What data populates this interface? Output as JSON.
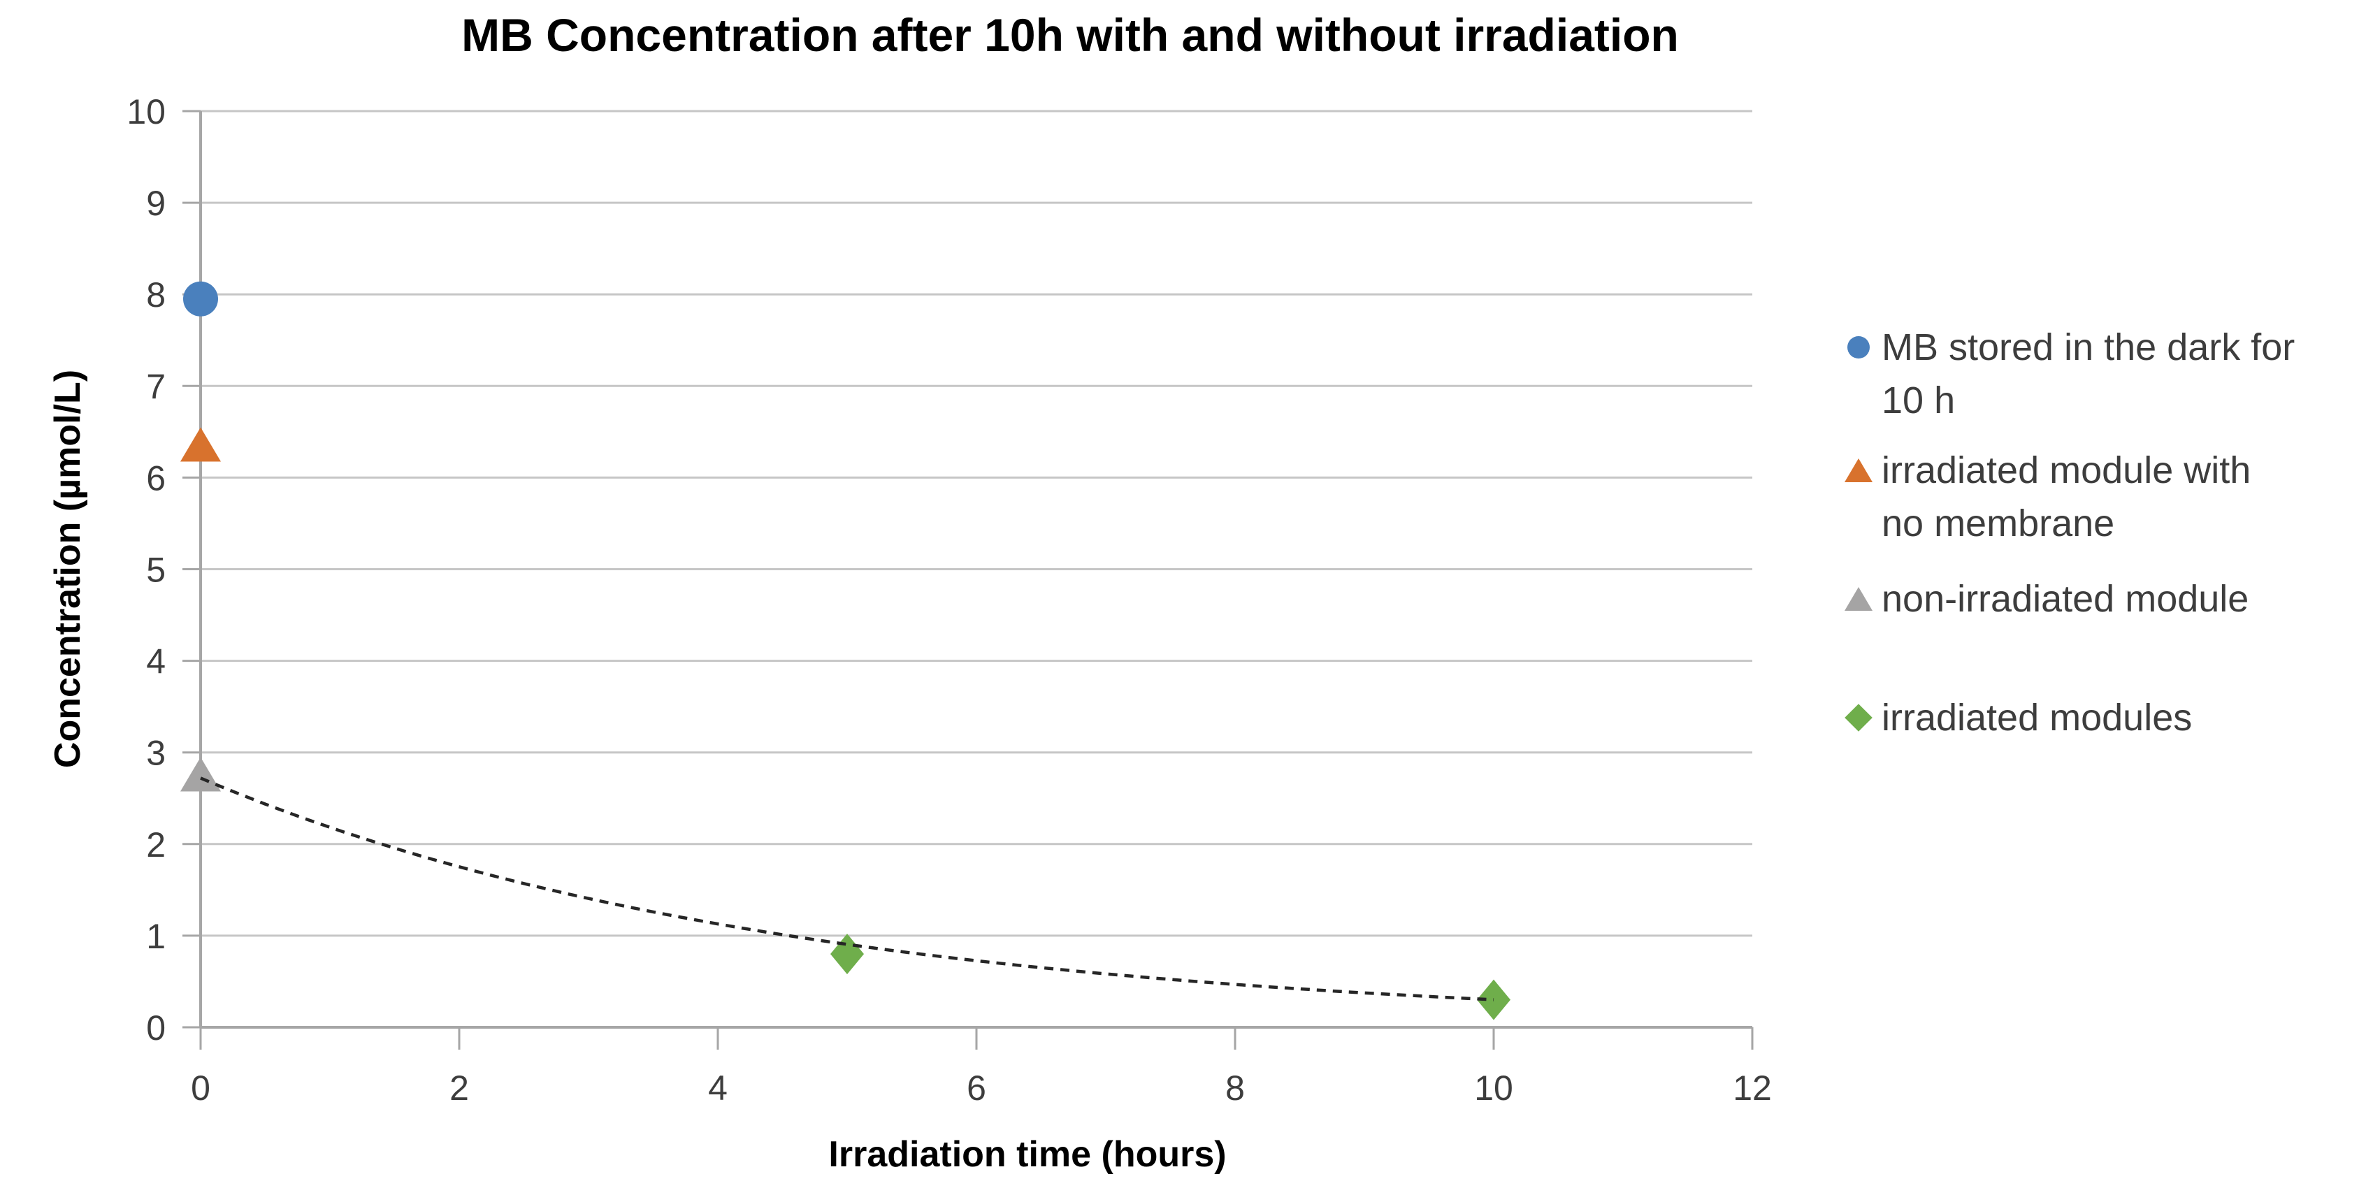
{
  "chart_data": {
    "type": "scatter",
    "title": "MB Concentration after 10h with and without irradiation",
    "xlabel": "Irradiation time (hours)",
    "ylabel": "Concentration (µmol/L)",
    "xlim": [
      0,
      12
    ],
    "ylim": [
      0,
      10
    ],
    "x_ticks": [
      0,
      2,
      4,
      6,
      8,
      10,
      12
    ],
    "y_ticks": [
      0,
      1,
      2,
      3,
      4,
      5,
      6,
      7,
      8,
      9,
      10
    ],
    "grid": "horizontal-only",
    "legend_position": "right",
    "series": [
      {
        "name": "MB stored in the dark for 10 h",
        "legend_lines": [
          "MB stored in the dark for",
          "10 h"
        ],
        "marker": "circle",
        "color": "#4a80bd",
        "points": [
          [
            0,
            7.95
          ]
        ]
      },
      {
        "name": "irradiated module with no membrane",
        "legend_lines": [
          "irradiated module with",
          "no membrane"
        ],
        "marker": "triangle",
        "color": "#d8722d",
        "points": [
          [
            0,
            6.35
          ]
        ]
      },
      {
        "name": "non-irradiated module",
        "legend_lines": [
          "non-irradiated module"
        ],
        "marker": "triangle",
        "color": "#a5a4a4",
        "points": [
          [
            0,
            2.75
          ]
        ]
      },
      {
        "name": "irradiated modules",
        "legend_lines": [
          "irradiated modules"
        ],
        "marker": "diamond",
        "color": "#6fae4b",
        "points": [
          [
            5,
            0.8
          ],
          [
            10,
            0.3
          ]
        ]
      }
    ],
    "trendline": {
      "applies_to": "irradiated modules",
      "type": "exponential-decay",
      "c0": 2.72,
      "k": 0.22,
      "x_range": [
        0,
        10.05
      ],
      "style": "dashed",
      "color": "#262626"
    },
    "colors": {
      "gridline": "#c6c6c6",
      "axis": "#a6a6a6",
      "tick_label": "#3d3d3d",
      "legend_text": "#3d3d3d",
      "title_text": "#000000"
    }
  }
}
